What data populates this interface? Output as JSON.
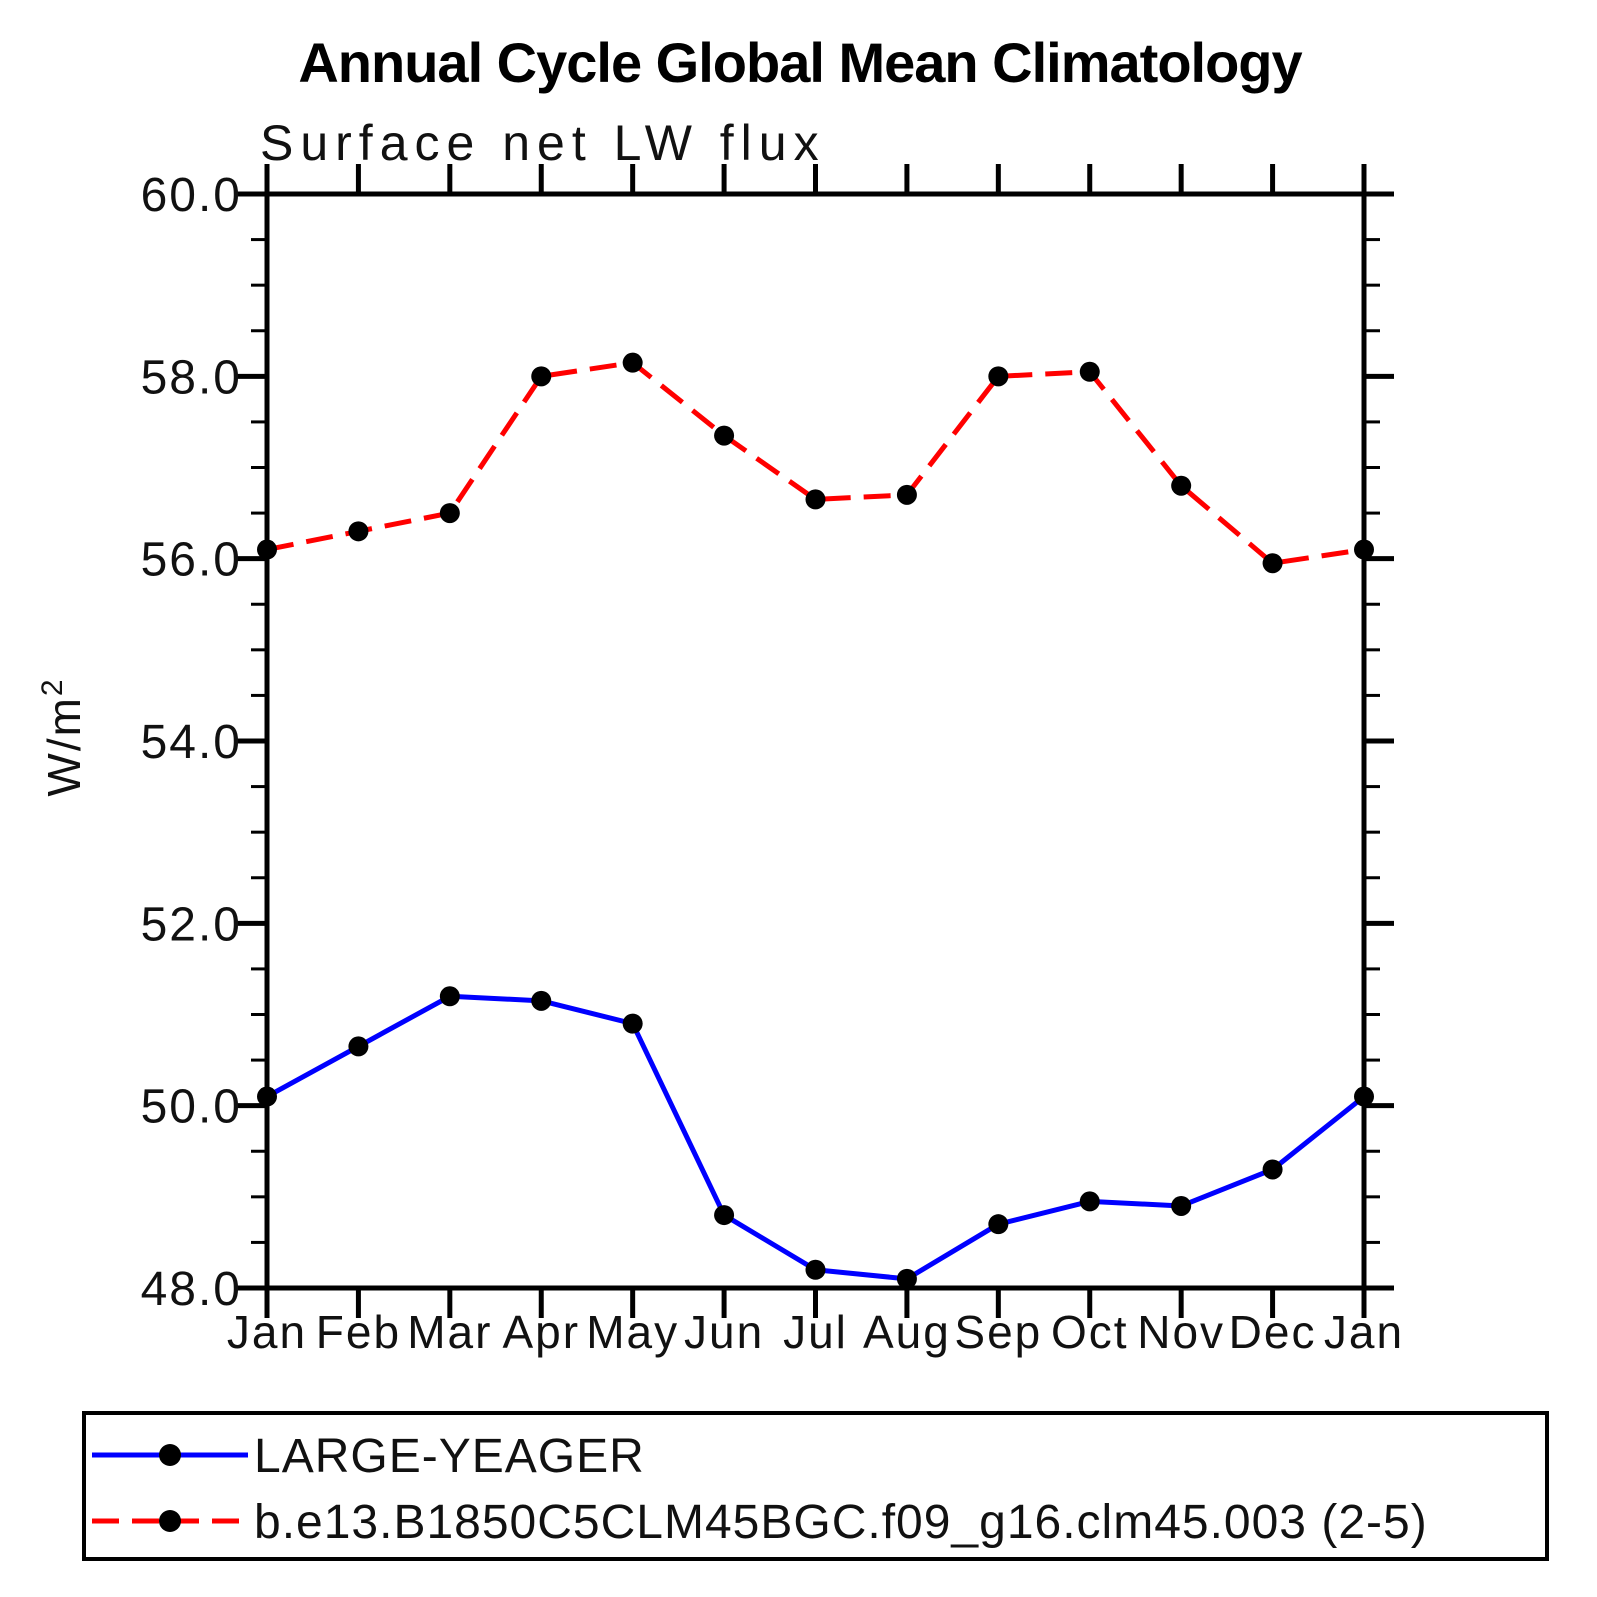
{
  "title": "Annual Cycle Global Mean Climatology",
  "subtitle": "Surface net LW flux",
  "ylabel_base": "W/m",
  "ylabel_sup": "2",
  "colors": {
    "background": "#ffffff",
    "axis": "#000000",
    "marker": "#000000",
    "series_large_yeager": "#0000ff",
    "series_model": "#ff0000"
  },
  "chart_data": {
    "type": "line",
    "title": "Annual Cycle Global Mean Climatology",
    "subtitle": "Surface net LW flux",
    "xlabel": "",
    "ylabel": "W/m²",
    "categories": [
      "Jan",
      "Feb",
      "Mar",
      "Apr",
      "May",
      "Jun",
      "Jul",
      "Aug",
      "Sep",
      "Oct",
      "Nov",
      "Dec",
      "Jan"
    ],
    "series": [
      {
        "name": "LARGE-YEAGER",
        "color": "#0000ff",
        "line_style": "solid",
        "marker": "filled-circle",
        "marker_color": "#000000",
        "values": [
          50.1,
          50.65,
          51.2,
          51.15,
          50.9,
          48.8,
          48.2,
          48.1,
          48.7,
          48.95,
          48.9,
          49.3,
          50.1
        ]
      },
      {
        "name": "b.e13.B1850C5CLM45BGC.f09_g16.clm45.003 (2-5)",
        "color": "#ff0000",
        "line_style": "dashed",
        "marker": "filled-circle",
        "marker_color": "#000000",
        "values": [
          56.1,
          56.3,
          56.5,
          58.0,
          58.15,
          57.35,
          56.65,
          56.7,
          58.0,
          58.05,
          56.8,
          55.95,
          56.1
        ]
      }
    ],
    "ylim": [
      48.0,
      60.0
    ],
    "ytick_major_interval": 2.0,
    "ytick_minor_interval": 0.5,
    "ytick_labels": [
      "48.0",
      "50.0",
      "52.0",
      "54.0",
      "56.0",
      "58.0",
      "60.0"
    ],
    "grid": false,
    "legend_position": "bottom-left-box"
  }
}
